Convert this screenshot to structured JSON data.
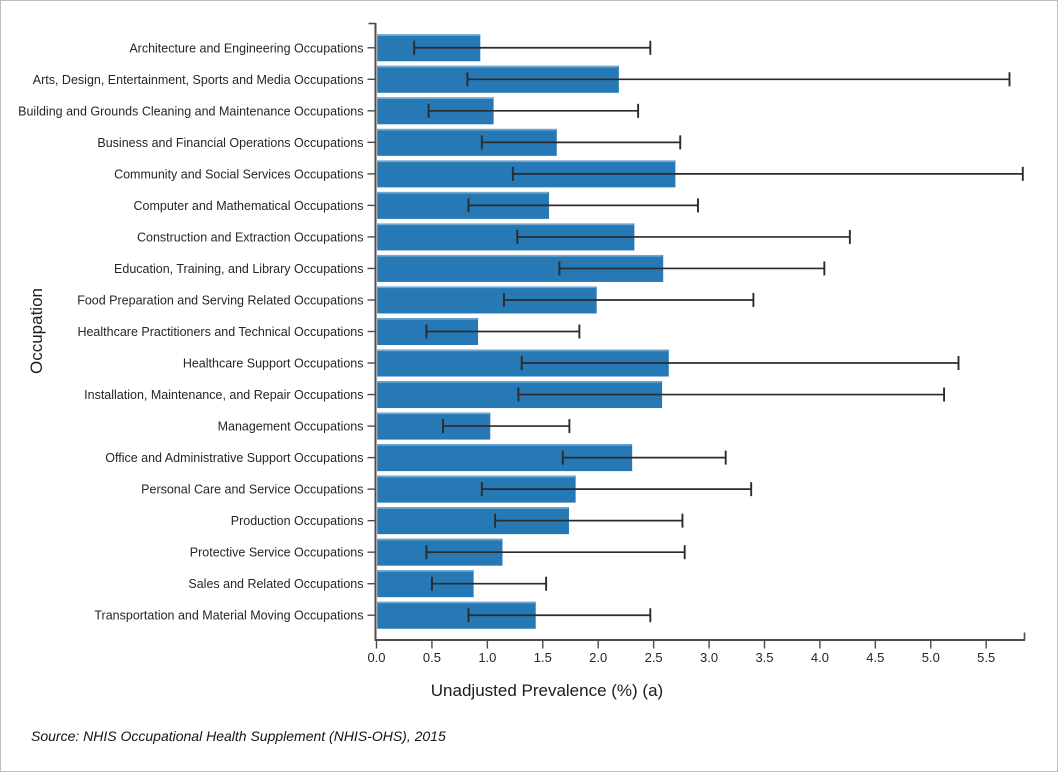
{
  "frame": {
    "background": "#ffffff",
    "border_color": "#bdbdbd"
  },
  "source_note": "Source: NHIS Occupational Health Supplement (NHIS-OHS), 2015",
  "chart_data": {
    "type": "bar",
    "orientation": "horizontal",
    "title": "",
    "xlabel": "Unadjusted Prevalence (%) (a)",
    "ylabel": "Occupation",
    "xlim": [
      0,
      5.85
    ],
    "xticks": [
      0.0,
      0.5,
      1.0,
      1.5,
      2.0,
      2.5,
      3.0,
      3.5,
      4.0,
      4.5,
      5.0,
      5.5
    ],
    "grid": false,
    "legend": "none",
    "bar_color": "#2779b5",
    "bar_top_highlight": "#6fa7cf",
    "error_bar_color": "#2b2b2b",
    "axis_color": "#4c4c4c",
    "categories": [
      "Architecture and Engineering Occupations",
      "Arts, Design, Entertainment, Sports and Media Occupations",
      "Building and Grounds Cleaning and Maintenance Occupations",
      "Business and Financial Operations Occupations",
      "Community and Social Services Occupations",
      "Computer and Mathematical Occupations",
      "Construction and Extraction Occupations",
      "Education, Training, and Library Occupations",
      "Food Preparation and Serving Related Occupations",
      "Healthcare Practitioners and Technical Occupations",
      "Healthcare Support Occupations",
      "Installation, Maintenance, and Repair Occupations",
      "Management Occupations",
      "Office and Administrative Support Occupations",
      "Personal Care and Service Occupations",
      "Production Occupations",
      "Protective Service Occupations",
      "Sales and Related Occupations",
      "Transportation and Material Moving Occupations"
    ],
    "series": [
      {
        "name": "Unadjusted Prevalence (%)",
        "values": [
          0.93,
          2.18,
          1.05,
          1.62,
          2.69,
          1.55,
          2.32,
          2.58,
          1.98,
          0.91,
          2.63,
          2.57,
          1.02,
          2.3,
          1.79,
          1.73,
          1.13,
          0.87,
          1.43
        ],
        "ci_low": [
          0.34,
          0.82,
          0.47,
          0.95,
          1.23,
          0.83,
          1.27,
          1.65,
          1.15,
          0.45,
          1.31,
          1.28,
          0.6,
          1.68,
          0.95,
          1.07,
          0.45,
          0.5,
          0.83
        ],
        "ci_high": [
          2.47,
          5.71,
          2.36,
          2.74,
          5.83,
          2.9,
          4.27,
          4.04,
          3.4,
          1.83,
          5.25,
          5.12,
          1.74,
          3.15,
          3.38,
          2.76,
          2.78,
          1.53,
          2.47
        ]
      }
    ]
  }
}
